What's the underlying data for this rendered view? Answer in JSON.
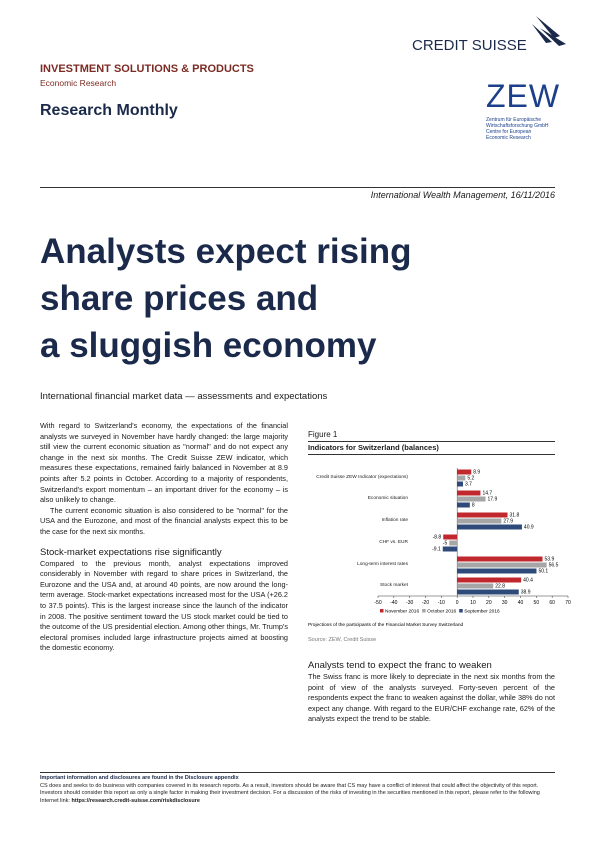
{
  "header": {
    "logo": "CREDIT SUISSE",
    "division": "INVESTMENT SOLUTIONS & PRODUCTS",
    "unit": "Economic Research",
    "publication": "Research Monthly",
    "partner_logo": {
      "name": "ZEW",
      "lines": [
        "Zentrum für Europäische",
        "Wirtschaftsforschung GmbH",
        "Centre for European",
        "Economic Research"
      ]
    }
  },
  "dateline": "International Wealth Management, 16/11/2016",
  "title": {
    "lines": [
      "Analysts expect rising",
      "share prices and",
      "a sluggish economy"
    ]
  },
  "subtitle": "International financial market data — assessments and expectations",
  "left_column": {
    "paragraphs": [
      "With regard to Switzerland's economy, the expectations of the financial analysts we surveyed in November have hardly changed: the large majority still view the current economic situation as \"normal\" and do not expect any change in the next six months. The Credit Suisse ZEW indicator, which measures these expectations, remained fairly balanced in November at 8.9 points after 5.2 points in October. According to a majority of respondents, Switzerland's export momentum – an important driver for the economy – is also unlikely to change.",
      "The current economic situation is also considered to be \"normal\" for the USA and the Eurozone, and most of the financial analysts expect this to be the case for the next six months."
    ],
    "heading": "Stock-market expectations rise significantly",
    "section_paragraphs": [
      "Compared to the previous month, analyst expectations improved considerably in November with regard to share prices in Switzerland, the Eurozone and the USA and, at around 40 points, are now around the long-term average. Stock-market expectations increased most for the USA (+26.2 to 37.5 points). This is the largest increase since the launch of the indicator in 2008. The positive sentiment toward the US stock market could be tied to the outcome of the US presidential election. Among other things, Mr. Trump's electoral promises included large infrastructure projects aimed at boosting the domestic economy."
    ]
  },
  "figure": {
    "label": "Figure 1",
    "title": "Indicators for Switzerland (balances)",
    "note": "Projections of the participants of the Financial Market Survey Switzerland",
    "source": "Source: ZEW, Credit Suisse"
  },
  "chart_data": {
    "type": "hbar",
    "categories": [
      "Credit Suisse ZEW Indicator (expectations)",
      "Economic situation",
      "Inflation rate",
      "CHF vs. EUR",
      "Long-term interest rates",
      "Stock market"
    ],
    "series": [
      {
        "name": "November 2016",
        "color": "#c0282d",
        "values": [
          8.9,
          14.7,
          31.8,
          -8.8,
          53.9,
          40.4
        ]
      },
      {
        "name": "October 2016",
        "color": "#a6a6a6",
        "values": [
          5.2,
          17.9,
          27.9,
          -5,
          56.5,
          22.8
        ]
      },
      {
        "name": "September 2016",
        "color": "#2e4a7a",
        "values": [
          3.7,
          8,
          40.9,
          -9.1,
          50.1,
          38.9
        ]
      }
    ],
    "xlim": [
      -50,
      70
    ],
    "xticks": [
      -50,
      -40,
      -30,
      -20,
      -10,
      0,
      10,
      20,
      30,
      40,
      50,
      60,
      70
    ]
  },
  "right_column": {
    "heading": "Analysts tend to expect the franc to weaken",
    "paragraphs": [
      "The Swiss franc is more likely to depreciate in the next six months from the point of view of the analysts surveyed. Forty-seven percent of the respondents expect the franc to weaken against the dollar, while 38% do not expect any change. With regard to the EUR/CHF exchange rate, 62% of the analysts expect the trend to be stable."
    ]
  },
  "footer": {
    "notice": "Important information and disclosures are found in the Disclosure appendix",
    "text": "CS does and seeks to do business with companies covered in its research reports. As a result, investors should be aware that CS may have a conflict of interest that could affect the objectivity of this report. Investors should consider this report as only a single factor in making their investment decision. For a discussion of the risks of investing in the securities mentioned in this report, please refer to the following Internet link:",
    "link": "https://research.credit-suisse.com/riskdisclosure"
  }
}
